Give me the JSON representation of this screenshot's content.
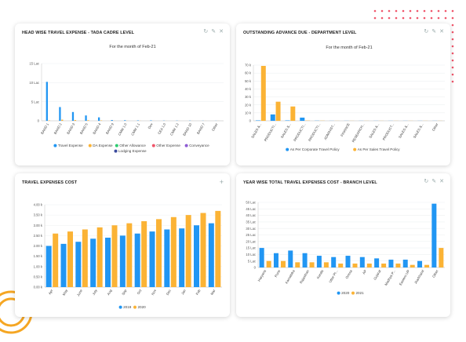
{
  "colors": {
    "blue": "#2196f3",
    "orange": "#fbb335",
    "green": "#2ecc71",
    "red": "#f0566b",
    "purple": "#8e5bd4",
    "navy": "#3b4b9e",
    "dot": "#f0566b",
    "ring": "#f5a623"
  },
  "card1": {
    "title": "HEAD WISE TRAVEL EXPENSE - TADA CADRE LEVEL",
    "icons": [
      "refresh-icon",
      "edit-icon",
      "close-icon"
    ],
    "chart_data": {
      "type": "bar",
      "subtitle": "For the month of Feb-21",
      "categories": [
        "BAND 1",
        "BAND 2",
        "BAND 3",
        "BAND 5",
        "BAND 4",
        "BAND 9",
        "CMM 1.0",
        "CMM 1.1",
        "Dev",
        "CEA 1.0",
        "CMM 1.2",
        "BAND 10",
        "BAND 7",
        "Other"
      ],
      "yticks": [
        "0",
        "5 Lac",
        "10 Lac",
        "15 Lac"
      ],
      "ylim": [
        0,
        15
      ],
      "series": [
        {
          "name": "Travel Expense",
          "color": "#2196f3",
          "values": [
            10.2,
            3.6,
            2.3,
            1.4,
            0.9,
            0.2,
            0.15,
            0.1,
            0.1,
            0.05,
            0.05,
            0.05,
            0.03,
            0.02
          ]
        },
        {
          "name": "DA Expense",
          "color": "#fbb335",
          "values": [
            0.1,
            0.3,
            0.2,
            0.15,
            0.1,
            0.02,
            0.02,
            0.02,
            0.01,
            0.01,
            0.01,
            0.01,
            0.01,
            0.01
          ]
        },
        {
          "name": "Other Allowance",
          "color": "#2ecc71",
          "values": [
            0,
            0,
            0,
            0,
            0,
            0,
            0,
            0,
            0,
            0,
            0,
            0,
            0,
            0
          ]
        },
        {
          "name": "Other Expense",
          "color": "#f0566b",
          "values": [
            0,
            0,
            0,
            0,
            0,
            0,
            0,
            0,
            0,
            0,
            0,
            0,
            0,
            0
          ]
        },
        {
          "name": "Conveyance",
          "color": "#8e5bd4",
          "values": [
            0,
            0,
            0,
            0,
            0,
            0,
            0,
            0,
            0,
            0,
            0,
            0,
            0,
            0
          ]
        },
        {
          "name": "Lodging Expense",
          "color": "#3b4b9e",
          "values": [
            0,
            0,
            0,
            0,
            0,
            0,
            0,
            0,
            0,
            0,
            0,
            0,
            0,
            0
          ]
        }
      ],
      "legend": "bottom"
    }
  },
  "card2": {
    "title": "OUTSTANDING ADVANCE DUE - DEPARTMENT LEVEL",
    "icons": [
      "refresh-icon",
      "edit-icon",
      "close-icon"
    ],
    "chart_data": {
      "type": "bar",
      "subtitle": "For the month of Feb-21",
      "categories": [
        "SALES &...",
        "PRODUCTI...",
        "SALES &...",
        "PRODUCTI...",
        "PRODUCTI...",
        "ADMINIST...",
        "FINANCE",
        "RESEARCH...",
        "SALES &...",
        "PRODUCT...",
        "SALES &...",
        "SALES &...",
        "Other"
      ],
      "yticks": [
        "0",
        "10 k",
        "20 k",
        "30 k",
        "40 k",
        "50 k",
        "60 k",
        "70 k"
      ],
      "ylim": [
        0,
        70
      ],
      "series": [
        {
          "name": "As Per Corporate Travel Policy",
          "color": "#2196f3",
          "values": [
            0.5,
            8,
            0.5,
            4,
            0.2,
            0.1,
            0.1,
            0.1,
            0.1,
            0.1,
            0.1,
            0.1,
            0.1
          ]
        },
        {
          "name": "As Per Sales Travel Policy",
          "color": "#fbb335",
          "values": [
            69,
            24,
            18,
            0.3,
            0.2,
            0.1,
            0.1,
            0.1,
            0.1,
            0.1,
            0.1,
            0.1,
            0.1
          ]
        }
      ],
      "legend": "bottom"
    }
  },
  "card3": {
    "title": "TRAVEL EXPENSES COST",
    "icons": [
      "plus-icon"
    ],
    "chart_data": {
      "type": "bar",
      "categories": [
        "Apr",
        "May",
        "June",
        "July",
        "Aug",
        "Sep",
        "Oct",
        "Nov",
        "Dec",
        "Jan",
        "Feb",
        "Mar"
      ],
      "yticks": [
        "0.00 k",
        "0.50 k",
        "1.00 k",
        "1.50 k",
        "2.00 k",
        "2.50 k",
        "3.00 k",
        "3.50 k",
        "4.00 k"
      ],
      "ylim": [
        0,
        4
      ],
      "series": [
        {
          "name": "2019",
          "color": "#2196f3",
          "values": [
            2.0,
            2.1,
            2.2,
            2.35,
            2.4,
            2.5,
            2.6,
            2.7,
            2.8,
            2.85,
            3.0,
            3.1
          ]
        },
        {
          "name": "2020",
          "color": "#fbb335",
          "values": [
            2.6,
            2.7,
            2.8,
            2.9,
            3.0,
            3.1,
            3.2,
            3.3,
            3.4,
            3.5,
            3.6,
            3.7
          ]
        }
      ],
      "legend": "bottom"
    }
  },
  "card4": {
    "title": "YEAR WISE TOTAL TRAVEL EXPENSES COST - BRANCH LEVEL",
    "icons": [
      "refresh-icon",
      "edit-icon",
      "close-icon"
    ],
    "chart_data": {
      "type": "bar",
      "categories": [
        "Haryana",
        "Pune",
        "Karnataka",
        "Rajasthan",
        "Kerala",
        "Uttar Pr...",
        "Orissa",
        "AP",
        "Gujarat",
        "Madhya P...",
        "Eastern UP",
        "Jharkhand",
        "Other"
      ],
      "yticks": [
        "0",
        "5 Lac",
        "10 Lac",
        "15 Lac",
        "20 Lac",
        "25 Lac",
        "30 Lac",
        "35 Lac",
        "40 Lac",
        "45 Lac",
        "50 Lac"
      ],
      "ylim": [
        0,
        50
      ],
      "series": [
        {
          "name": "2020",
          "color": "#2196f3",
          "values": [
            15,
            11,
            13,
            11,
            9,
            8,
            9,
            8,
            7,
            6,
            6,
            5,
            49
          ]
        },
        {
          "name": "2021",
          "color": "#fbb335",
          "values": [
            5,
            5,
            4,
            4,
            4,
            3,
            3,
            3,
            3,
            3,
            2,
            2,
            15
          ]
        }
      ],
      "legend": "bottom"
    }
  }
}
